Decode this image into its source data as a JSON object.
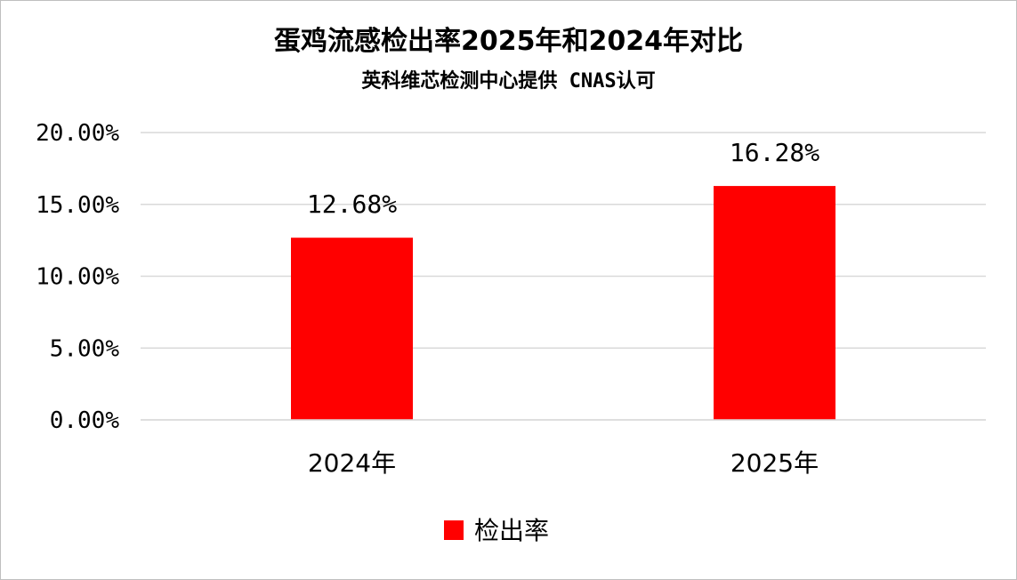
{
  "chart_data": {
    "type": "bar",
    "title": "蛋鸡流感检出率2025年和2024年对比",
    "subtitle": "英科维芯检测中心提供  CNAS认可",
    "categories": [
      "2024年",
      "2025年"
    ],
    "series": [
      {
        "name": "检出率",
        "values": [
          12.68,
          16.28
        ],
        "labels": [
          "12.68%",
          "16.28%"
        ],
        "color": "#ff0000"
      }
    ],
    "ylim": [
      0,
      20
    ],
    "yticks": [
      0,
      5,
      10,
      15,
      20
    ],
    "ytick_labels": [
      "0.00%",
      "5.00%",
      "10.00%",
      "15.00%",
      "20.00%"
    ],
    "grid": true,
    "legend_position": "bottom",
    "grid_color": "#d9d9d9"
  }
}
